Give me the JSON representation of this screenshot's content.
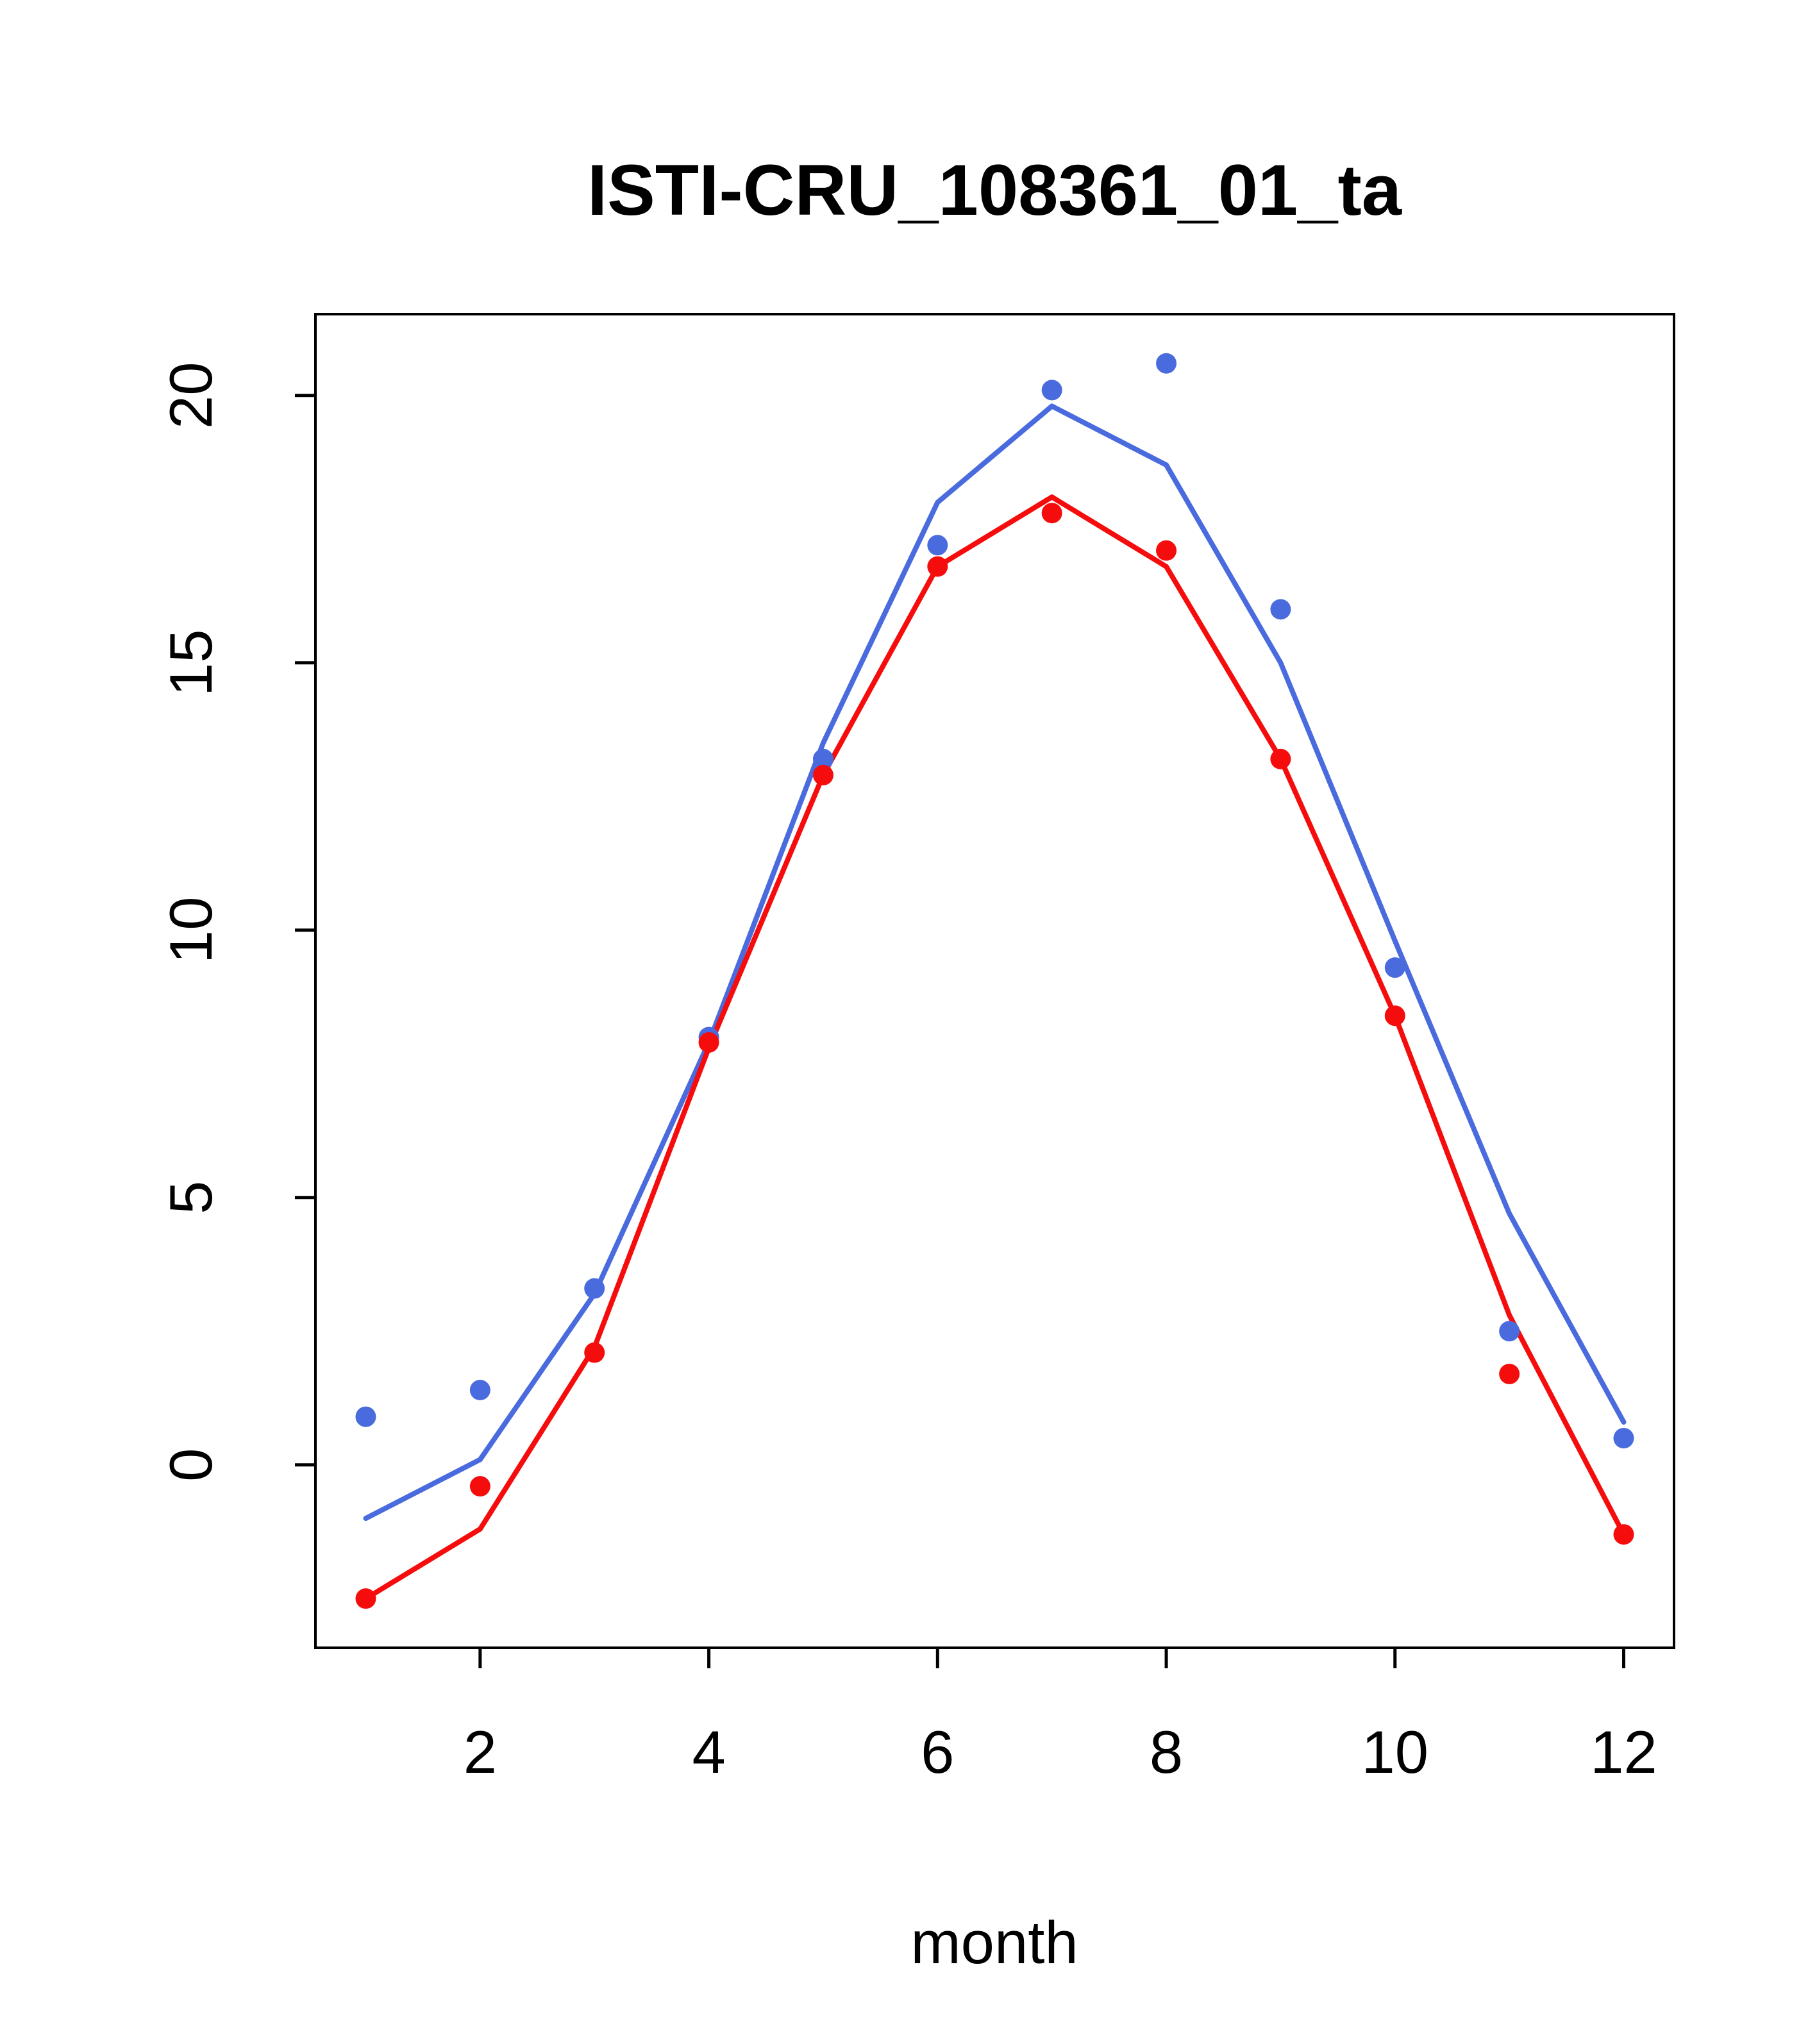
{
  "page": {
    "background": "#ffffff"
  },
  "chart_data": {
    "type": "line",
    "title": "ISTI-CRU_108361_01_ta",
    "xlabel": "month",
    "ylabel": "",
    "x": [
      1,
      2,
      3,
      4,
      5,
      6,
      7,
      8,
      9,
      10,
      11,
      12
    ],
    "xticks": [
      2,
      4,
      6,
      8,
      10,
      12
    ],
    "yticks": [
      0,
      5,
      10,
      15,
      20
    ],
    "xlim": [
      0.56,
      12.44
    ],
    "ylim": [
      -3.42,
      21.52
    ],
    "grid": false,
    "legend": "none",
    "colors": {
      "blue": "#4a6bdd",
      "red": "#f50d0d"
    },
    "series": [
      {
        "name": "blue-line",
        "style": "line",
        "color": "#4a6bdd",
        "values": [
          -1.0,
          0.1,
          3.2,
          7.9,
          13.5,
          18.0,
          19.8,
          18.7,
          15.0,
          9.8,
          4.7,
          0.8
        ]
      },
      {
        "name": "red-line",
        "style": "line",
        "color": "#f50d0d",
        "values": [
          -2.5,
          -1.2,
          2.2,
          7.8,
          12.9,
          16.8,
          18.1,
          16.8,
          13.2,
          8.4,
          2.8,
          -1.3
        ]
      },
      {
        "name": "blue-points",
        "style": "points",
        "color": "#4a6bdd",
        "values": [
          0.9,
          1.4,
          3.3,
          8.0,
          13.2,
          17.2,
          20.1,
          20.6,
          16.0,
          9.3,
          2.5,
          0.5
        ]
      },
      {
        "name": "red-points",
        "style": "points",
        "color": "#f50d0d",
        "values": [
          -2.5,
          -0.4,
          2.1,
          7.9,
          12.9,
          16.8,
          17.8,
          17.1,
          13.2,
          8.4,
          1.7,
          -1.3
        ]
      }
    ]
  }
}
